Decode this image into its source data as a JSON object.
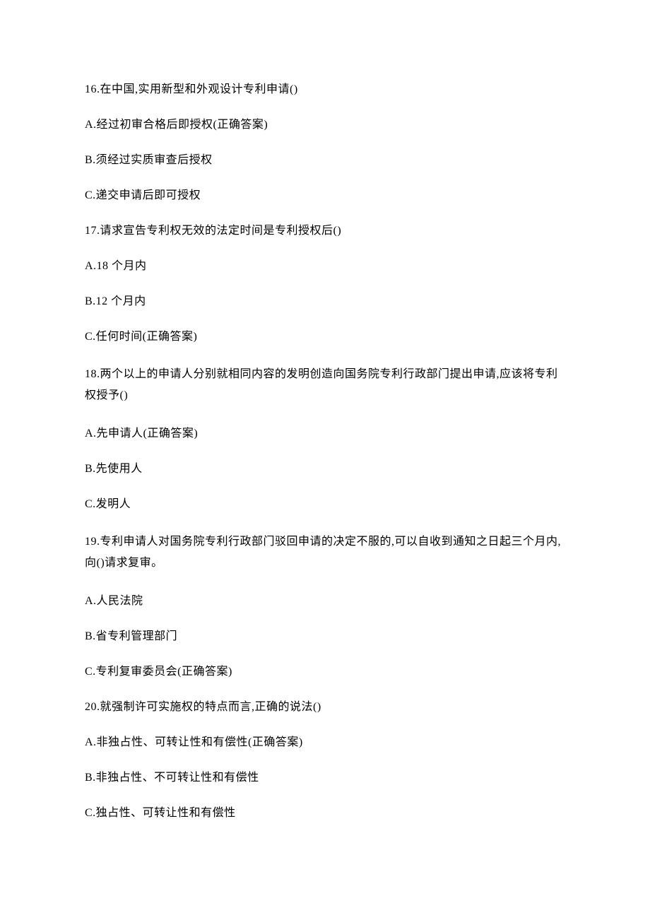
{
  "colors": {
    "background": "#ffffff",
    "text": "#000000"
  },
  "typography": {
    "font_family": "SimSun",
    "font_size": 16,
    "line_spacing": 26
  },
  "questions": [
    {
      "stem": "16.在中国,实用新型和外观设计专利申请()",
      "options": [
        "A.经过初审合格后即授权(正确答案)",
        "B.须经过实质审查后授权",
        "C.递交申请后即可授权"
      ]
    },
    {
      "stem": "17.请求宣告专利权无效的法定时间是专利授权后()",
      "options": [
        "A.18 个月内",
        "B.12 个月内",
        "C.任何时间(正确答案)"
      ]
    },
    {
      "stem": "18.两个以上的申请人分别就相同内容的发明创造向国务院专利行政部门提出申请,应该将专利权授予()",
      "options": [
        "A.先申请人(正确答案)",
        "B.先使用人",
        "C.发明人"
      ]
    },
    {
      "stem": "19.专利申请人对国务院专利行政部门驳回申请的决定不服的,可以自收到通知之日起三个月内,向()请求复审。",
      "options": [
        "A.人民法院",
        "B.省专利管理部门",
        "C.专利复审委员会(正确答案)"
      ]
    },
    {
      "stem": "20.就强制许可实施权的特点而言,正确的说法()",
      "options": [
        "A.非独占性、可转让性和有偿性(正确答案)",
        "B.非独占性、不可转让性和有偿性",
        "C.独占性、可转让性和有偿性"
      ]
    }
  ]
}
